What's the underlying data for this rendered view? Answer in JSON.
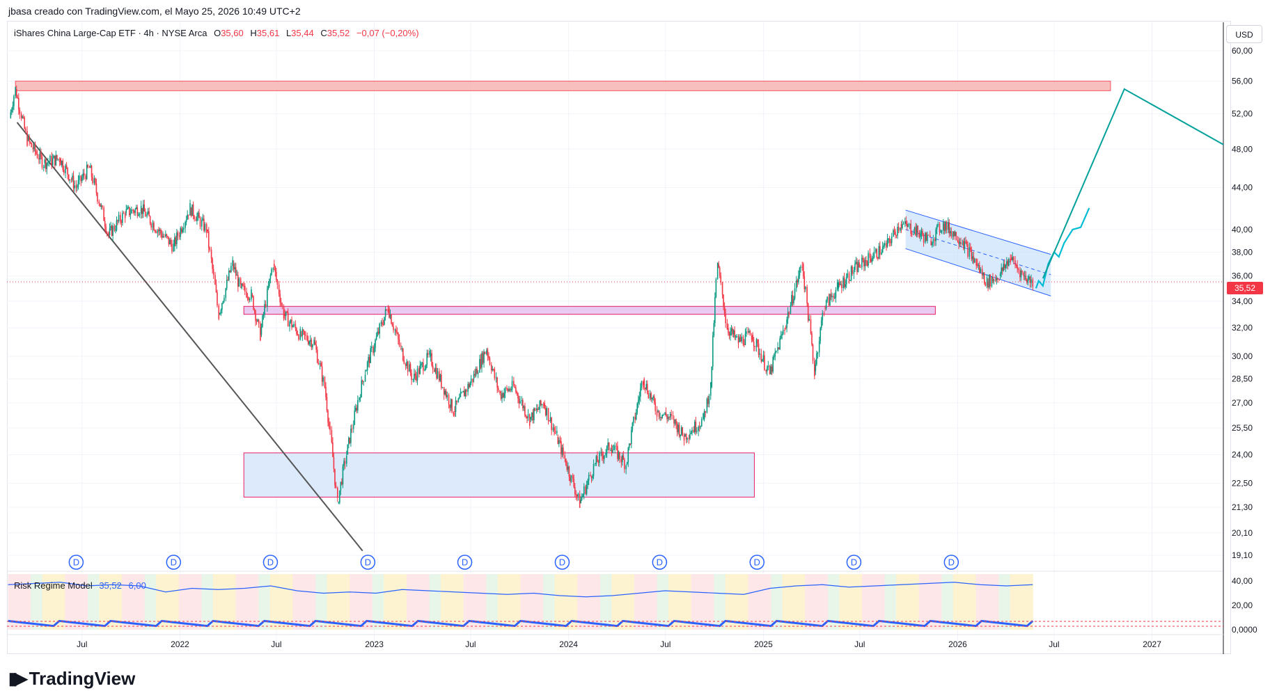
{
  "header": {
    "credit": "jbasa creado con TradingView.com, el Mayo 25, 2026 10:49 UTC+2"
  },
  "legend": {
    "symbol": "iShares China Large-Cap ETF · 4h · NYSE Arca",
    "open_label": "O",
    "open": "35,60",
    "high_label": "H",
    "high": "35,61",
    "low_label": "L",
    "low": "35,44",
    "close_label": "C",
    "close": "35,52",
    "change": "−0,07 (−0,20%)"
  },
  "currency_button": "USD",
  "last_price_tag": "35,52",
  "indicator": {
    "name": "Risk Regime Model",
    "value1": "35,52",
    "value2": "6,00",
    "axis_labels": [
      "40,00",
      "20,00",
      "0,0000"
    ]
  },
  "footer": {
    "brand": "TradingView"
  },
  "colors": {
    "up": "#089981",
    "down": "#f23645",
    "accent": "#2962ff",
    "projection": "#00a19a",
    "dashed_last": "#f23645"
  },
  "chart_data": {
    "type": "candlestick",
    "title": "iShares China Large-Cap ETF · 4h · NYSE Arca",
    "y_axis": {
      "scale": "log",
      "ticks": [
        60,
        56,
        52,
        48,
        44,
        40,
        38,
        36,
        34,
        32,
        30,
        28.5,
        27,
        25.5,
        24,
        22.5,
        21.3,
        20.1,
        19.1
      ],
      "tick_labels": [
        "60,00",
        "56,00",
        "52,00",
        "48,00",
        "44,00",
        "40,00",
        "38,00",
        "36,00",
        "34,00",
        "32,00",
        "30,00",
        "28,50",
        "27,00",
        "25,50",
        "24,00",
        "22,50",
        "21,30",
        "20,10",
        "19,10"
      ],
      "range": [
        18.6,
        64
      ]
    },
    "x_axis": {
      "ticks": [
        "2021-07",
        "2022-01",
        "2022-07",
        "2023-01",
        "2023-07",
        "2024-01",
        "2024-07",
        "2025-01",
        "2025-07",
        "2026-01",
        "2026-07",
        "2027-01"
      ],
      "tick_labels": [
        "Jul",
        "2022",
        "Jul",
        "2023",
        "Jul",
        "2024",
        "Jul",
        "2025",
        "Jul",
        "2026",
        "Jul",
        "2027"
      ],
      "range": [
        "2021-02-10",
        "2027-05-15"
      ]
    },
    "price_path": [
      [
        "2021-02-15",
        51.5
      ],
      [
        "2021-02-26",
        55.0
      ],
      [
        "2021-03-20",
        49.0
      ],
      [
        "2021-04-20",
        46.5
      ],
      [
        "2021-05-20",
        47.0
      ],
      [
        "2021-06-20",
        44.0
      ],
      [
        "2021-07-15",
        46.0
      ],
      [
        "2021-08-20",
        39.5
      ],
      [
        "2021-09-20",
        41.5
      ],
      [
        "2021-10-20",
        42.0
      ],
      [
        "2021-11-20",
        40.0
      ],
      [
        "2021-12-20",
        38.5
      ],
      [
        "2022-01-20",
        42.0
      ],
      [
        "2022-02-20",
        40.0
      ],
      [
        "2022-03-15",
        33.0
      ],
      [
        "2022-04-10",
        37.0
      ],
      [
        "2022-04-25",
        35.0
      ],
      [
        "2022-05-15",
        34.5
      ],
      [
        "2022-06-01",
        31.5
      ],
      [
        "2022-06-25",
        37.0
      ],
      [
        "2022-07-15",
        33.0
      ],
      [
        "2022-08-15",
        31.5
      ],
      [
        "2022-09-10",
        31.0
      ],
      [
        "2022-09-30",
        28.0
      ],
      [
        "2022-10-24",
        21.5
      ],
      [
        "2022-11-10",
        24.0
      ],
      [
        "2022-12-15",
        29.0
      ],
      [
        "2023-01-27",
        33.5
      ],
      [
        "2023-02-20",
        30.5
      ],
      [
        "2023-03-15",
        28.5
      ],
      [
        "2023-04-15",
        30.0
      ],
      [
        "2023-05-30",
        26.5
      ],
      [
        "2023-07-05",
        28.5
      ],
      [
        "2023-07-31",
        30.5
      ],
      [
        "2023-08-25",
        27.5
      ],
      [
        "2023-09-20",
        28.0
      ],
      [
        "2023-10-20",
        26.0
      ],
      [
        "2023-11-15",
        27.0
      ],
      [
        "2023-12-10",
        25.0
      ],
      [
        "2024-01-22",
        21.5
      ],
      [
        "2024-02-20",
        23.5
      ],
      [
        "2024-03-20",
        24.5
      ],
      [
        "2024-04-18",
        23.5
      ],
      [
        "2024-05-20",
        28.5
      ],
      [
        "2024-06-15",
        26.5
      ],
      [
        "2024-07-15",
        26.0
      ],
      [
        "2024-08-05",
        25.0
      ],
      [
        "2024-09-10",
        26.0
      ],
      [
        "2024-09-24",
        28.0
      ],
      [
        "2024-10-07",
        37.0
      ],
      [
        "2024-10-25",
        32.0
      ],
      [
        "2024-11-15",
        31.0
      ],
      [
        "2024-12-10",
        31.5
      ],
      [
        "2025-01-13",
        28.8
      ],
      [
        "2025-02-10",
        32.0
      ],
      [
        "2025-03-15",
        37.0
      ],
      [
        "2025-04-07",
        29.0
      ],
      [
        "2025-04-25",
        33.5
      ],
      [
        "2025-05-20",
        35.0
      ],
      [
        "2025-06-20",
        36.5
      ],
      [
        "2025-07-20",
        37.5
      ],
      [
        "2025-08-20",
        38.5
      ],
      [
        "2025-09-15",
        40.5
      ],
      [
        "2025-10-10",
        40.0
      ],
      [
        "2025-11-10",
        39.0
      ],
      [
        "2025-12-05",
        40.5
      ],
      [
        "2026-01-10",
        39.0
      ],
      [
        "2026-02-05",
        37.0
      ],
      [
        "2026-02-25",
        35.5
      ],
      [
        "2026-03-20",
        36.0
      ],
      [
        "2026-04-10",
        37.5
      ],
      [
        "2026-05-05",
        36.0
      ],
      [
        "2026-05-22",
        35.52
      ]
    ],
    "annotations": {
      "resistance_zone": {
        "from": "2021-02-26",
        "to": "2026-10-15",
        "price_top": 56.0,
        "price_bottom": 54.8,
        "color": "#f7b8b8"
      },
      "mid_zone": {
        "from": "2022-05-01",
        "to": "2025-11-20",
        "price_top": 33.6,
        "price_bottom": 33.0,
        "color": "#e7c4ef"
      },
      "support_zone": {
        "from": "2022-05-01",
        "to": "2024-12-15",
        "price_top": 24.1,
        "price_bottom": 21.8,
        "color": "#d8e8fb"
      },
      "trendline": {
        "from": [
          "2021-03-01",
          51.0
        ],
        "to": [
          "2022-12-10",
          19.3
        ]
      },
      "channel_upper": {
        "from": [
          "2025-09-25",
          41.8
        ],
        "to": [
          "2026-06-25",
          37.8
        ]
      },
      "channel_lower": {
        "from": [
          "2025-09-25",
          38.3
        ],
        "to": [
          "2026-06-25",
          34.4
        ]
      },
      "channel_mid": {
        "from": [
          "2025-09-25",
          40.0
        ],
        "to": [
          "2026-06-25",
          36.1
        ]
      },
      "projection_wave": [
        [
          "2026-05-28",
          35.0
        ],
        [
          "2026-06-02",
          35.6
        ],
        [
          "2026-06-10",
          35.2
        ],
        [
          "2026-06-20",
          37.0
        ],
        [
          "2026-07-01",
          38.0
        ],
        [
          "2026-07-10",
          37.6
        ],
        [
          "2026-07-20",
          38.8
        ],
        [
          "2026-08-05",
          40.0
        ],
        [
          "2026-08-20",
          40.2
        ],
        [
          "2026-09-05",
          42.0
        ]
      ],
      "projection_long": [
        [
          "2026-06-10",
          35.8
        ],
        [
          "2026-11-10",
          55.0
        ],
        [
          "2027-05-15",
          48.5
        ]
      ],
      "last_price_line": 35.52,
      "dividend_marks": [
        "2021-06-20",
        "2021-12-20",
        "2022-06-20",
        "2022-12-20",
        "2023-06-20",
        "2023-12-20",
        "2024-06-20",
        "2024-12-20",
        "2025-06-20",
        "2025-12-20"
      ],
      "dividend_label": "D"
    },
    "indicator_series": {
      "name": "Risk Regime Model",
      "y_range": [
        0,
        40
      ],
      "ticks": [
        40,
        20,
        0
      ],
      "values": [
        37,
        38,
        39,
        36,
        37,
        36,
        31,
        34,
        33,
        34,
        36,
        32,
        30,
        31,
        30,
        33,
        32,
        31,
        30,
        29,
        30,
        28,
        27,
        28,
        30,
        32,
        31,
        30,
        29,
        34,
        36,
        37,
        35,
        36,
        37,
        38,
        39,
        37,
        36,
        37
      ]
    }
  }
}
